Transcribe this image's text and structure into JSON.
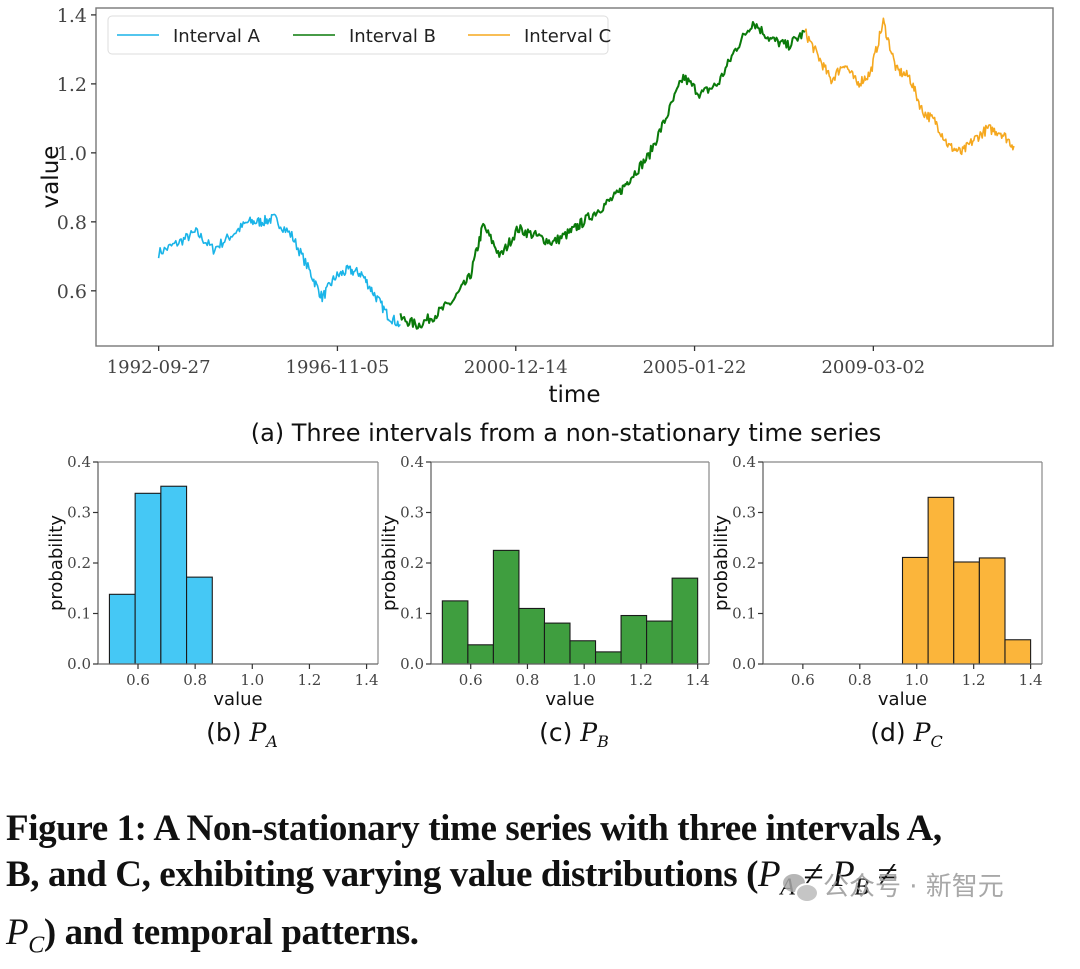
{
  "chart_data": [
    {
      "id": "a",
      "type": "line",
      "subcaption": "(a) Three intervals from a non-stationary time series",
      "xlabel": "time",
      "ylabel": "value",
      "ylim": [
        0.44,
        1.42
      ],
      "yticks": [
        0.6,
        0.8,
        1.0,
        1.2,
        1.4
      ],
      "ytick_labels": [
        "0.6",
        "0.8",
        "1.0",
        "1.2",
        "1.4"
      ],
      "xticks": [
        "1992-09-27",
        "1996-11-05",
        "2000-12-14",
        "2005-01-22",
        "2009-03-02"
      ],
      "xlim_years": [
        1991.3,
        2013.3
      ],
      "legend": {
        "position": "top-left",
        "columns": 3
      },
      "series": [
        {
          "name": "Interval A",
          "color": "#1ab4e8",
          "x": [
            1992.74,
            1993.2,
            1993.6,
            1994.0,
            1994.4,
            1994.8,
            1995.1,
            1995.4,
            1995.8,
            1996.2,
            1996.5,
            1996.8,
            1997.1,
            1997.4,
            1997.7,
            1998.0,
            1998.3
          ],
          "y": [
            0.71,
            0.74,
            0.77,
            0.72,
            0.76,
            0.8,
            0.8,
            0.81,
            0.76,
            0.66,
            0.58,
            0.64,
            0.66,
            0.65,
            0.59,
            0.53,
            0.5
          ]
        },
        {
          "name": "Interval B",
          "color": "#0a7a0a",
          "x": [
            1998.3,
            1998.7,
            1999.1,
            1999.5,
            1999.9,
            2000.2,
            2000.6,
            2001.0,
            2001.4,
            2001.8,
            2002.2,
            2002.5,
            2002.9,
            2003.3,
            2003.6,
            2004.0,
            2004.4,
            2004.8,
            2005.2,
            2005.6,
            2006.0,
            2006.4,
            2006.8,
            2007.2,
            2007.6
          ],
          "y": [
            0.52,
            0.5,
            0.53,
            0.57,
            0.64,
            0.79,
            0.7,
            0.78,
            0.76,
            0.74,
            0.77,
            0.8,
            0.84,
            0.88,
            0.93,
            0.99,
            1.1,
            1.22,
            1.17,
            1.2,
            1.3,
            1.38,
            1.33,
            1.31,
            1.35
          ]
        },
        {
          "name": "Interval C",
          "color": "#f5a81f",
          "x": [
            1998.3,
            2007.6,
            2007.9,
            2008.2,
            2008.5,
            2008.8,
            2009.1,
            2009.4,
            2009.7,
            2010.0,
            2010.3,
            2010.6,
            2010.9,
            2011.2,
            2011.5,
            2011.8,
            2012.1,
            2012.4
          ],
          "y": [
            0.5,
            1.35,
            1.28,
            1.21,
            1.26,
            1.2,
            1.23,
            1.38,
            1.24,
            1.22,
            1.12,
            1.09,
            1.02,
            1.0,
            1.04,
            1.07,
            1.06,
            1.02
          ]
        }
      ]
    },
    {
      "id": "b",
      "type": "bar",
      "subcaption_prefix": "(b)",
      "subcaption_math": "P",
      "subcaption_sub": "A",
      "xlabel": "value",
      "ylabel": "probability",
      "xlim": [
        0.46,
        1.44
      ],
      "ylim": [
        0.0,
        0.4
      ],
      "xticks": [
        0.6,
        0.8,
        1.0,
        1.2,
        1.4
      ],
      "xtick_labels": [
        "0.6",
        "0.8",
        "1.0",
        "1.2",
        "1.4"
      ],
      "yticks": [
        0.0,
        0.1,
        0.2,
        0.3,
        0.4
      ],
      "ytick_labels": [
        "0.0",
        "0.1",
        "0.2",
        "0.3",
        "0.4"
      ],
      "color": "#45c8f5",
      "bin_edges": [
        0.5,
        0.59,
        0.68,
        0.77,
        0.86
      ],
      "values": [
        0.138,
        0.338,
        0.352,
        0.172
      ]
    },
    {
      "id": "c",
      "type": "bar",
      "subcaption_prefix": "(c)",
      "subcaption_math": "P",
      "subcaption_sub": "B",
      "xlabel": "value",
      "ylabel": "probability",
      "xlim": [
        0.46,
        1.44
      ],
      "ylim": [
        0.0,
        0.4
      ],
      "xticks": [
        0.6,
        0.8,
        1.0,
        1.2,
        1.4
      ],
      "xtick_labels": [
        "0.6",
        "0.8",
        "1.0",
        "1.2",
        "1.4"
      ],
      "yticks": [
        0.0,
        0.1,
        0.2,
        0.3,
        0.4
      ],
      "ytick_labels": [
        "0.0",
        "0.1",
        "0.2",
        "0.3",
        "0.4"
      ],
      "color": "#3f9e3f",
      "bin_edges": [
        0.5,
        0.59,
        0.68,
        0.77,
        0.86,
        0.95,
        1.04,
        1.13,
        1.22,
        1.31,
        1.4
      ],
      "values": [
        0.125,
        0.038,
        0.225,
        0.11,
        0.081,
        0.046,
        0.024,
        0.096,
        0.085,
        0.17
      ]
    },
    {
      "id": "d",
      "type": "bar",
      "subcaption_prefix": "(d)",
      "subcaption_math": "P",
      "subcaption_sub": "C",
      "xlabel": "value",
      "ylabel": "probability",
      "xlim": [
        0.46,
        1.44
      ],
      "ylim": [
        0.0,
        0.4
      ],
      "xticks": [
        0.6,
        0.8,
        1.0,
        1.2,
        1.4
      ],
      "xtick_labels": [
        "0.6",
        "0.8",
        "1.0",
        "1.2",
        "1.4"
      ],
      "yticks": [
        0.0,
        0.1,
        0.2,
        0.3,
        0.4
      ],
      "ytick_labels": [
        "0.0",
        "0.1",
        "0.2",
        "0.3",
        "0.4"
      ],
      "color": "#fbb53b",
      "bin_edges": [
        0.95,
        1.04,
        1.13,
        1.22,
        1.31,
        1.4
      ],
      "values": [
        0.211,
        0.33,
        0.202,
        0.21,
        0.048
      ]
    }
  ],
  "caption": {
    "line1": "Figure 1: A Non-stationary time series with three intervals A,",
    "line2_pre": "B, and C, exhibiting varying value distributions (",
    "line2_post": "",
    "line3_post": ") and temporal patterns.",
    "math_P": "P",
    "sub_A": "A",
    "sub_B": "B",
    "sub_C": "C",
    "neq": "≠"
  },
  "watermark": "公众号 · 新智元"
}
